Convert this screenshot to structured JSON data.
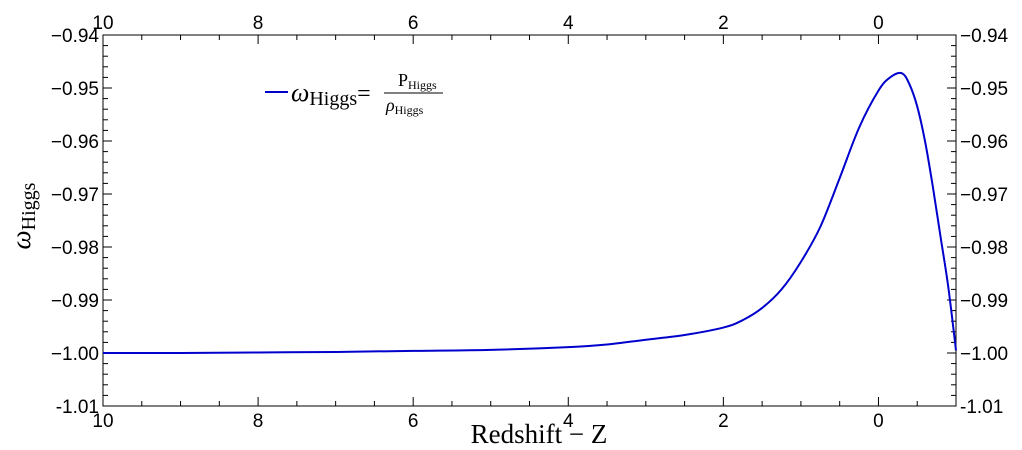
{
  "chart_data": {
    "type": "line",
    "xlabel": "Redshift − Z",
    "ylabel": {
      "symbol": "ω",
      "subscript": "Higgs"
    },
    "xlim": [
      10,
      -1
    ],
    "x_reversed": true,
    "ylim": [
      -1.01,
      -0.94
    ],
    "grid": false,
    "frame_ticks_mirrored": true,
    "x_ticks": [
      10,
      8,
      6,
      4,
      2,
      0
    ],
    "x_tick_labels": [
      "10",
      "8",
      "6",
      "4",
      "2",
      "0"
    ],
    "y_ticks": [
      -0.94,
      -0.95,
      -0.96,
      -0.97,
      -0.98,
      -0.99,
      -1.0,
      -1.01
    ],
    "y_tick_labels": [
      "−0.94",
      "−0.95",
      "−0.96",
      "−0.97",
      "−0.98",
      "−0.99",
      "−1.00",
      "-1.01"
    ],
    "legend": {
      "placement": "top-left",
      "symbol": "ω",
      "symbol_sub": "Higgs",
      "equals": "=",
      "numerator": "P",
      "numerator_sub": "Higgs",
      "denominator": "ρ",
      "denominator_sub": "Higgs"
    },
    "series": [
      {
        "color": "#0000cc",
        "x": [
          10,
          9,
          8,
          7,
          6,
          5,
          4,
          3.5,
          3,
          2.5,
          2,
          1.75,
          1.5,
          1.25,
          1,
          0.75,
          0.5,
          0.25,
          0,
          -0.15,
          -0.3,
          -0.4,
          -0.5,
          -0.6,
          -0.7,
          -0.8,
          -0.9,
          -1.0
        ],
        "y": [
          -1.0,
          -1.0,
          -0.9999,
          -0.9998,
          -0.9996,
          -0.9994,
          -0.9989,
          -0.9984,
          -0.9975,
          -0.9966,
          -0.9952,
          -0.9938,
          -0.9915,
          -0.988,
          -0.9828,
          -0.9762,
          -0.967,
          -0.9575,
          -0.9505,
          -0.948,
          -0.9472,
          -0.9493,
          -0.9535,
          -0.96,
          -0.9685,
          -0.978,
          -0.9875,
          -0.9995
        ]
      }
    ]
  }
}
